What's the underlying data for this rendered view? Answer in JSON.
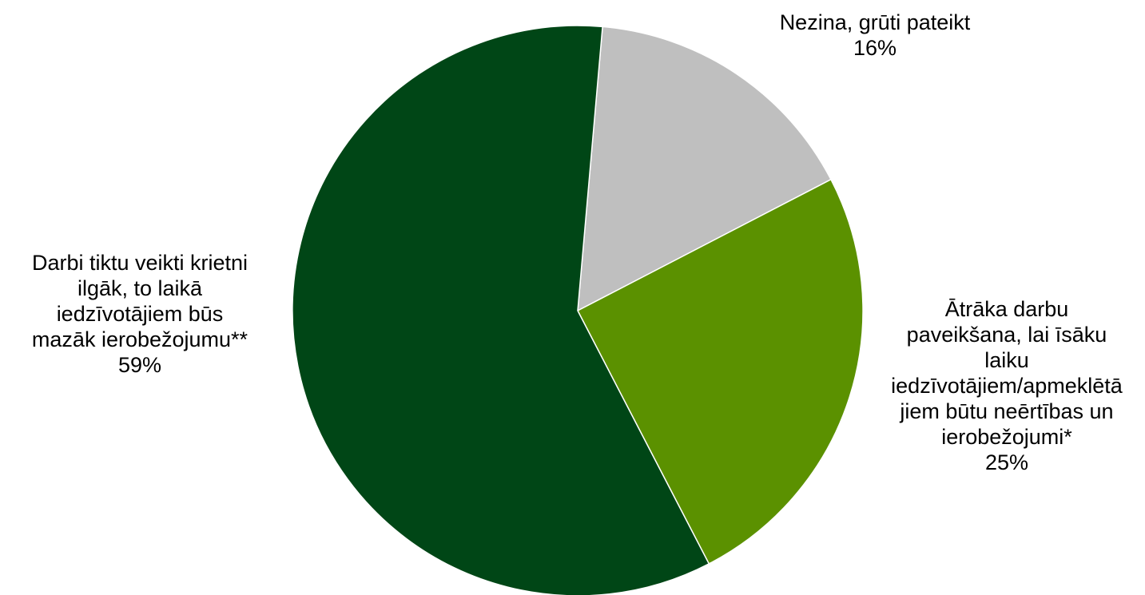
{
  "chart_data": {
    "type": "pie",
    "start_angle_deg": 5,
    "direction": "clockwise",
    "slices": [
      {
        "label_lines": [
          "Nezina, grūti pateikt"
        ],
        "value": 16,
        "value_label": "16%",
        "color": "#bfbfbf"
      },
      {
        "label_lines": [
          "Ātrāka darbu",
          "paveikšana, lai īsāku",
          "laiku",
          "iedzīvotājiem/apmeklētā",
          "jiem būtu neērtības un",
          "ierobežojumi*"
        ],
        "value": 25,
        "value_label": "25%",
        "color": "#5b9100"
      },
      {
        "label_lines": [
          "Darbi tiktu veikti krietni",
          "ilgāk, to laikā",
          "iedzīvotājiem būs",
          "mazāk ierobežojumu**"
        ],
        "value": 59,
        "value_label": "59%",
        "color": "#004616"
      }
    ]
  }
}
